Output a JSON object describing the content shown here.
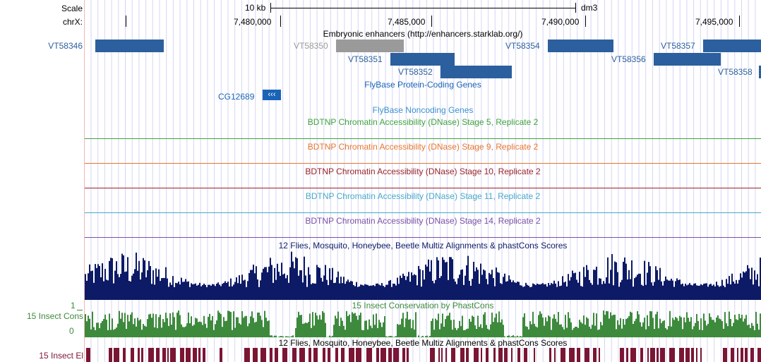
{
  "ruler": {
    "scale_label": "Scale",
    "scale_value": "10 kb",
    "assembly": "dm3",
    "chrom_label": "chrX:",
    "positions": [
      "7,480,000",
      "7,485,000",
      "7,490,000",
      "7,495,000"
    ]
  },
  "tracks": {
    "enhancers": {
      "title": "Embryonic enhancers (http://enhancers.starklab.org/)",
      "left_label": "VT58346",
      "features": [
        "VT58350",
        "VT58351",
        "VT58352",
        "VT58354",
        "VT58357",
        "VT58356",
        "VT58358"
      ]
    },
    "flybase_coding": {
      "title": "FlyBase Protein-Coding Genes",
      "gene": "CG12689",
      "strand_glyph": "‹‹‹"
    },
    "flybase_noncoding": {
      "title": "FlyBase Noncoding Genes"
    },
    "dnase": [
      {
        "title": "BDTNP Chromatin Accessibility (DNase) Stage 5, Replicate 2",
        "color": "#3fa23f"
      },
      {
        "title": "BDTNP Chromatin Accessibility (DNase) Stage 9, Replicate 2",
        "color": "#e8772e"
      },
      {
        "title": "BDTNP Chromatin Accessibility (DNase) Stage 10, Replicate 2",
        "color": "#9b2226"
      },
      {
        "title": "BDTNP Chromatin Accessibility (DNase) Stage 11, Replicate 2",
        "color": "#48a9c9"
      },
      {
        "title": "BDTNP Chromatin Accessibility (DNase) Stage 14, Replicate 2",
        "color": "#7a4fa6"
      }
    ],
    "multiz": {
      "title": "12 Flies, Mosquito, Honeybee, Beetle Multiz Alignments & phastCons Scores",
      "color": "#0d1a66"
    },
    "insect_cons": {
      "title": "15 Insect Conservation by PhastCons",
      "left_label": "15 Insect Cons",
      "y_max": "1",
      "y_min": "0",
      "color": "#3d8a3d"
    },
    "insect_el": {
      "title": "12 Flies, Mosquito, Honeybee, Beetle Multiz Alignments & phastCons Scores",
      "left_label": "15 Insect El",
      "color": "#7b1534"
    }
  },
  "colors": {
    "feature_blue": "#2c5f9e",
    "feature_gray": "#9a9a9a",
    "gridline": "#d6d6f5",
    "left_border": "#f2b6b6"
  }
}
